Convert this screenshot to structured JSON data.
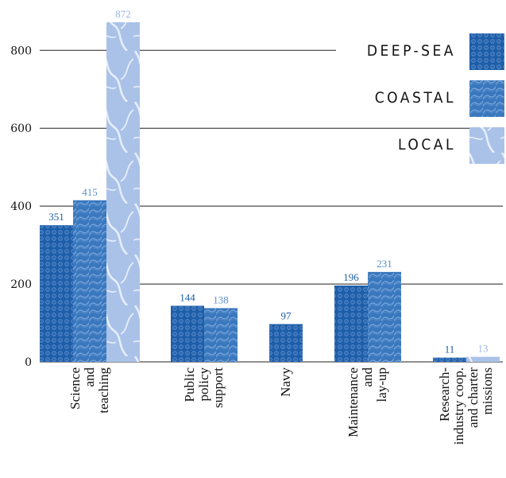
{
  "chart_data": {
    "type": "bar",
    "categories": [
      [
        "Science",
        "and",
        "teaching"
      ],
      [
        "Public",
        "policy",
        "support"
      ],
      [
        "Navy"
      ],
      [
        "Maintenance",
        "and",
        "lay-up"
      ],
      [
        "Research-",
        "industry coop.",
        "and charter",
        "missions"
      ]
    ],
    "series": [
      {
        "name": "DEEP-SEA",
        "values": [
          351,
          144,
          97,
          196,
          11
        ],
        "color": "#1e5ea8",
        "label_color": "#1e5ea8",
        "pattern": "dots"
      },
      {
        "name": "COASTAL",
        "values": [
          415,
          138,
          null,
          231,
          null
        ],
        "color": "#3f7fc4",
        "label_color": "#5b8fcf",
        "pattern": "waves"
      },
      {
        "name": "LOCAL",
        "values": [
          872,
          null,
          null,
          null,
          13
        ],
        "color": "#aec4e8",
        "label_color": "#9db5e0",
        "pattern": "marble"
      }
    ],
    "ylim": [
      0,
      872
    ],
    "yticks": [
      0,
      200,
      400,
      600,
      800
    ],
    "grid": true,
    "legend_position": "top-right"
  }
}
